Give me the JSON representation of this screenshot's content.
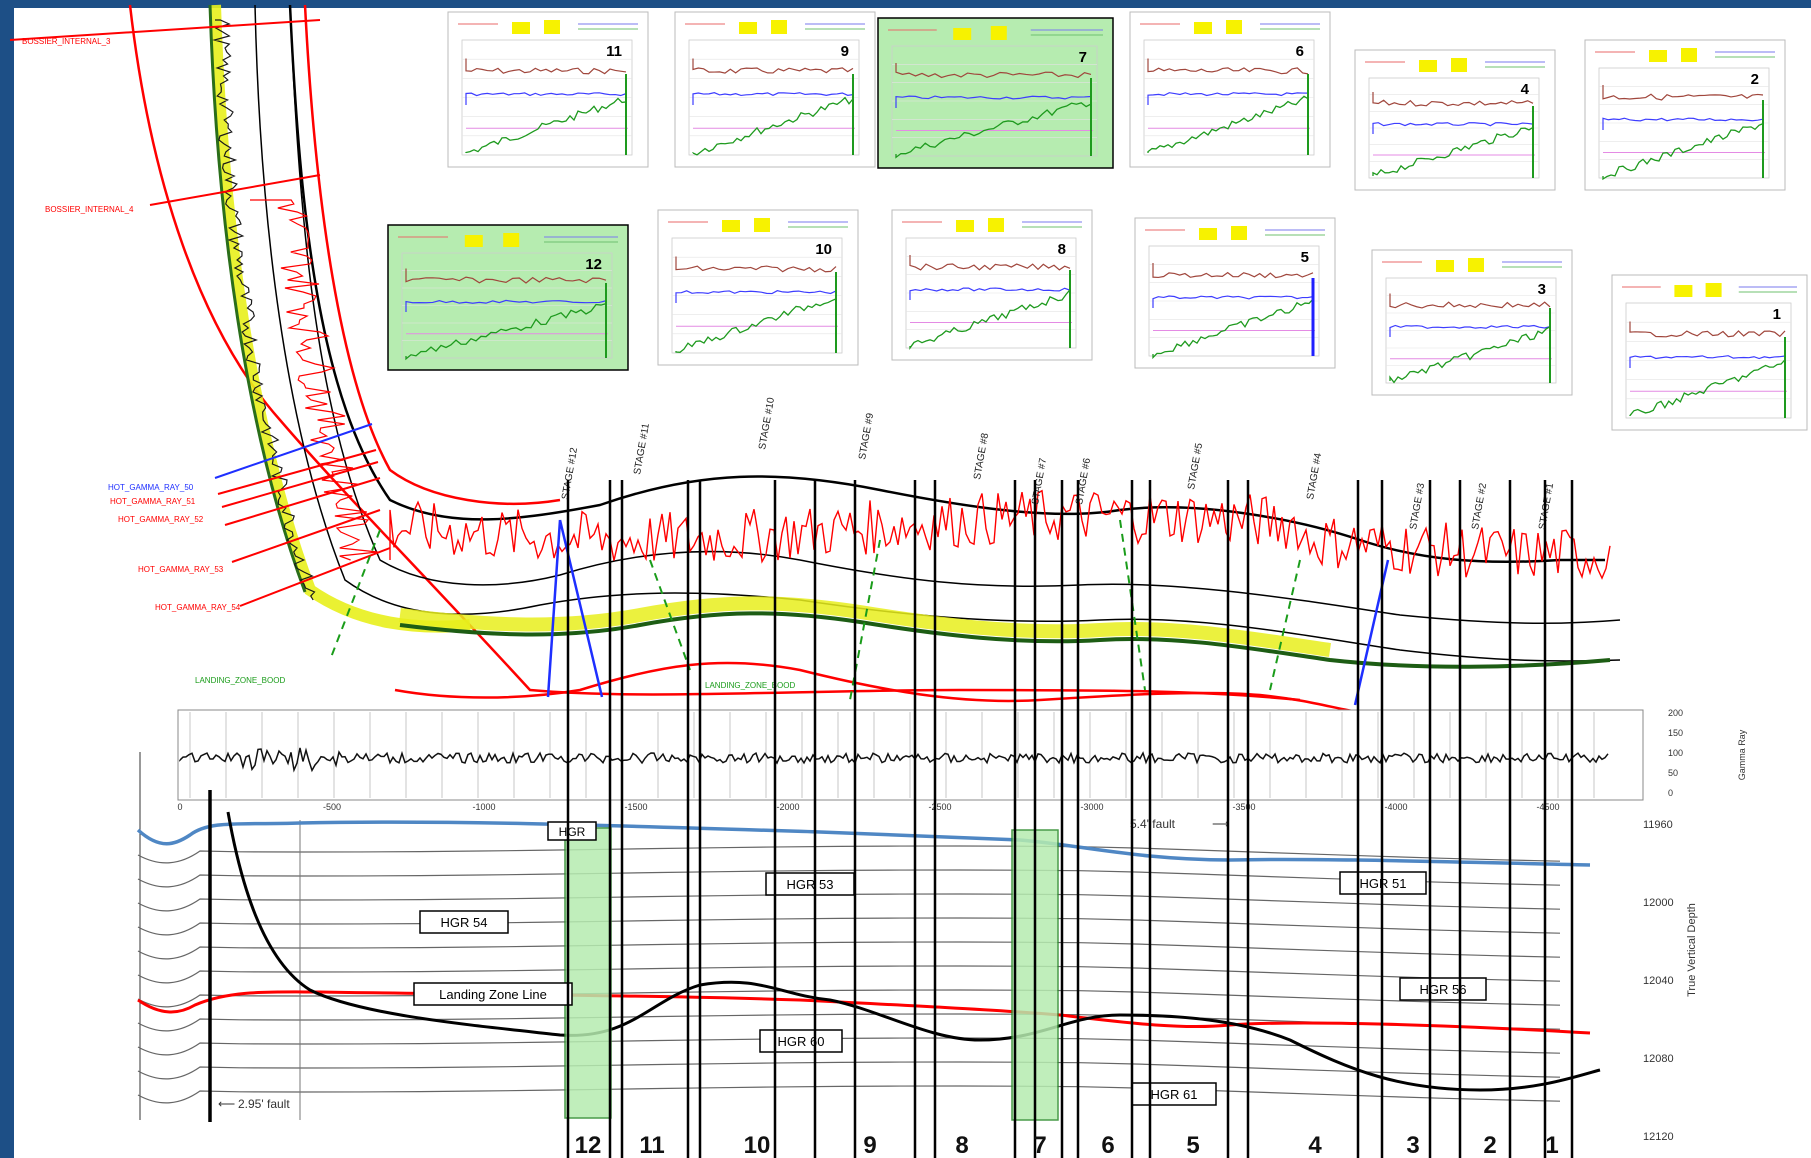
{
  "slide": {
    "frame_color": "#1d4f86"
  },
  "curve_labels": {
    "left": [
      "BOSSIER_INTERNAL_3",
      "BOSSIER_INTERNAL_4",
      "HOT_GAMMA_RAY_50",
      "HOT_GAMMA_RAY_51",
      "HOT_GAMMA_RAY_52",
      "HOT_GAMMA_RAY_53",
      "HOT_GAMMA_RAY_54"
    ],
    "landing_zone_1": "LANDING_ZONE_BOOD",
    "landing_zone_2": "LANDING_ZONE_BOOD"
  },
  "stages": [
    "STAGE #12",
    "STAGE #11",
    "STAGE #10",
    "STAGE #9",
    "STAGE #8",
    "STAGE #7",
    "STAGE #6",
    "STAGE #5",
    "STAGE #4",
    "STAGE #3",
    "STAGE #2",
    "STAGE #1"
  ],
  "thumbnails": [
    {
      "num": "11",
      "highlight": false
    },
    {
      "num": "9",
      "highlight": false
    },
    {
      "num": "7",
      "highlight": true
    },
    {
      "num": "6",
      "highlight": false
    },
    {
      "num": "4",
      "highlight": false
    },
    {
      "num": "2",
      "highlight": false
    },
    {
      "num": "12",
      "highlight": true
    },
    {
      "num": "10",
      "highlight": false
    },
    {
      "num": "8",
      "highlight": false
    },
    {
      "num": "5",
      "highlight": false
    },
    {
      "num": "3",
      "highlight": false
    },
    {
      "num": "1",
      "highlight": false
    }
  ],
  "gamma_panel": {
    "right_ticks": [
      "200",
      "150",
      "100",
      "50",
      "0"
    ],
    "right_label": "Gamma Ray",
    "x_ticks": [
      "0",
      "-500",
      "-1000",
      "-1500",
      "-2000",
      "-2500",
      "-3000",
      "-3500",
      "-4000",
      "-4500"
    ]
  },
  "section": {
    "depth_ticks": [
      "11960",
      "12000",
      "12040",
      "12080",
      "12120"
    ],
    "depth_label": "True Vertical Depth",
    "zone_boxes": [
      "HGR",
      "HGR 54",
      "HGR 53",
      "HGR 51",
      "HGR 56",
      "HGR 60",
      "HGR 61"
    ],
    "landing_zone_label": "Landing Zone Line",
    "fault_top": "5.4' fault",
    "fault_bottom": "2.95' fault",
    "bottom_numbers": [
      "12",
      "11",
      "10",
      "9",
      "8",
      "7",
      "6",
      "5",
      "4",
      "3",
      "2",
      "1"
    ]
  },
  "colors": {
    "red": "#ff0000",
    "blue": "#1e2fff",
    "green": "#1a9c1a",
    "yellow": "#e8ef1c",
    "horizon_blue": "#4f87c4",
    "highlight": "#b6ecb0"
  }
}
